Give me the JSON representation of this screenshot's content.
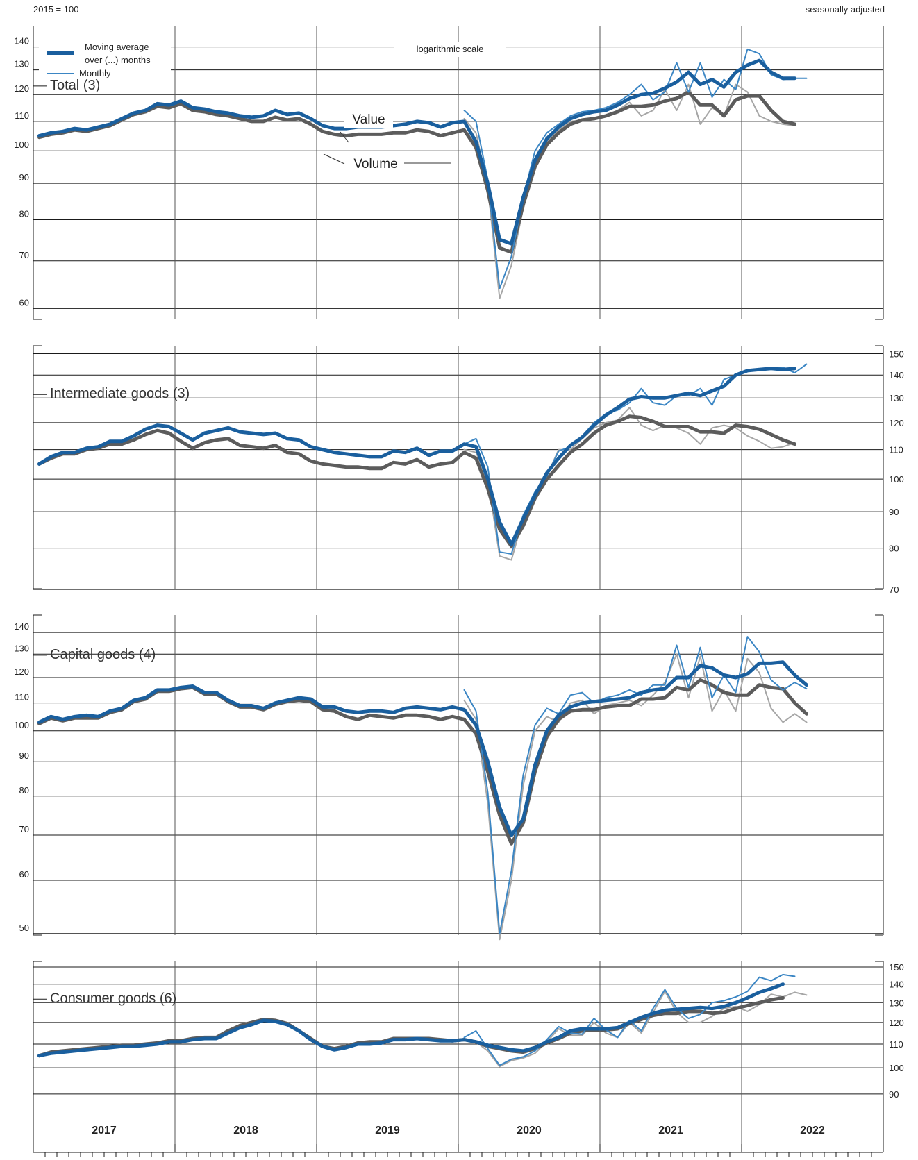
{
  "header": {
    "index_base": "2015 = 100",
    "adjustment_note": "seasonally adjusted"
  },
  "legend": {
    "moving_average_label_line1": "Moving average",
    "moving_average_label_line2": "over (...) months",
    "monthly_label": "Monthly",
    "value_label": "Value",
    "volume_label": "Volume",
    "scale_note": "logarithmic scale"
  },
  "colors": {
    "value_ma": "#1a5f9e",
    "value_monthly": "#3b86c4",
    "volume_ma": "#5c5c5c",
    "volume_monthly": "#a6a6a6",
    "grid": "#1a1a1a"
  },
  "x_axis": {
    "years": [
      "2017",
      "2018",
      "2019",
      "2020",
      "2021",
      "2022"
    ],
    "start": "2017-01",
    "months": 72
  },
  "chart_data": [
    {
      "type": "line",
      "title": "Total (3)",
      "scale": "log",
      "ylim": [
        56,
        150
      ],
      "yticks": [
        60,
        70,
        80,
        90,
        100,
        110,
        120,
        130,
        140
      ],
      "axis_side": "left",
      "ma_start": 0,
      "monthly_start": 36,
      "series": [
        {
          "name": "Value",
          "kind": "moving average",
          "start": "2017-01",
          "values": [
            105,
            106,
            106.5,
            107.5,
            107,
            108,
            109,
            111,
            113,
            114,
            116.5,
            116,
            117.5,
            115,
            114.5,
            113.5,
            113,
            112,
            111.5,
            112,
            114,
            112.5,
            113,
            111,
            108.5,
            107.5,
            107.5,
            108,
            108,
            108,
            108.5,
            109,
            110,
            109.5,
            108,
            109.5,
            110,
            103,
            90,
            75,
            74,
            86,
            97,
            104,
            108,
            111,
            112.5,
            113.5,
            114,
            116,
            118.5,
            120,
            120.5,
            122.5,
            125,
            129,
            124,
            126,
            123,
            129,
            132,
            134,
            129,
            126.5,
            126.5
          ]
        },
        {
          "name": "Value",
          "kind": "monthly",
          "start": "2020-01",
          "values": [
            114,
            110,
            91,
            64,
            71,
            86,
            100,
            106,
            109,
            112,
            113.5,
            114,
            115,
            117,
            120,
            124,
            118,
            121,
            133,
            121,
            133,
            119,
            126,
            122,
            139,
            137,
            128,
            126,
            126.5,
            126.5
          ]
        },
        {
          "name": "Volume",
          "kind": "moving average",
          "start": "2017-01",
          "values": [
            104.5,
            105.5,
            106,
            107,
            106.5,
            107.5,
            108.5,
            110.5,
            112.5,
            113.5,
            115.5,
            115,
            116.5,
            114,
            113.5,
            112.5,
            112,
            111,
            110,
            110,
            111.5,
            110.5,
            111,
            109,
            106.5,
            105.5,
            105,
            105.5,
            105.5,
            105.5,
            106,
            106,
            107,
            106.5,
            105,
            106,
            107,
            101,
            88,
            73,
            72,
            84,
            95,
            102,
            106,
            109,
            110.5,
            111,
            112,
            113.5,
            115.5,
            115.5,
            116,
            117.5,
            118.5,
            121,
            116,
            116,
            112,
            118,
            119.5,
            119.5,
            114,
            110,
            109
          ]
        },
        {
          "name": "Volume",
          "kind": "monthly",
          "start": "2020-01",
          "values": [
            111,
            106,
            89,
            62,
            69,
            83,
            97,
            103,
            107,
            110,
            110.5,
            111,
            112,
            114,
            117,
            112,
            114,
            122,
            114,
            124,
            109,
            115,
            112,
            124,
            121,
            112,
            110,
            109,
            108.5
          ]
        }
      ]
    },
    {
      "type": "line",
      "title": "Intermediate goods (3)",
      "scale": "log",
      "ylim": [
        68,
        156
      ],
      "yticks": [
        70,
        80,
        90,
        100,
        110,
        120,
        130,
        140,
        150
      ],
      "axis_side": "right",
      "ma_start": 0,
      "monthly_start": 36,
      "series": [
        {
          "name": "Value",
          "kind": "moving average",
          "start": "2017-01",
          "values": [
            105,
            107.5,
            109,
            109,
            110.5,
            111,
            113,
            113,
            115,
            117.5,
            119,
            118.5,
            116,
            113.5,
            116,
            117,
            118,
            116.5,
            116,
            115.5,
            116,
            114,
            113.5,
            111,
            110,
            109,
            108.5,
            108,
            107.5,
            107.5,
            109.5,
            109,
            110.5,
            108,
            109.5,
            109.5,
            112,
            111,
            100,
            87,
            81,
            88,
            95,
            102,
            107,
            111.5,
            114.5,
            119,
            123,
            126,
            129.5,
            130.5,
            130,
            130,
            131,
            132,
            131,
            133,
            135,
            140,
            142,
            142.5,
            143,
            142.5,
            143
          ]
        },
        {
          "name": "Value",
          "kind": "monthly",
          "start": "2020-01",
          "values": [
            112,
            114,
            104,
            79,
            78.5,
            89,
            96,
            101,
            109.5,
            111,
            115,
            120,
            123.5,
            125,
            128,
            134,
            128,
            127,
            131,
            131,
            134,
            127,
            138,
            140,
            142,
            142,
            143,
            143.5,
            141,
            145
          ]
        },
        {
          "name": "Volume",
          "kind": "moving average",
          "start": "2017-01",
          "values": [
            105,
            107,
            108.5,
            108.5,
            110,
            110.5,
            112,
            112,
            113.5,
            115.5,
            117,
            116,
            113,
            110.5,
            112.5,
            113.5,
            114,
            111.5,
            111,
            110.5,
            111.5,
            109,
            108.5,
            106,
            105,
            104.5,
            104,
            104,
            103.5,
            103.5,
            105.5,
            105,
            106.5,
            104,
            105,
            105.5,
            109,
            107,
            97,
            85,
            80.5,
            86,
            94,
            100,
            104.5,
            109,
            112,
            116,
            119,
            120.5,
            122.5,
            122,
            120.5,
            118.5,
            118.5,
            118.5,
            116.5,
            116.5,
            116,
            119,
            118.5,
            117.5,
            115.5,
            113.5,
            112
          ]
        },
        {
          "name": "Volume",
          "kind": "monthly",
          "start": "2020-01",
          "values": [
            110,
            109,
            100,
            78,
            77,
            88,
            95,
            101,
            110,
            110,
            114,
            118,
            120,
            121,
            126,
            119,
            117,
            119,
            118,
            116,
            112,
            118,
            119,
            118,
            115,
            113,
            110.5,
            111,
            112.5
          ]
        }
      ]
    },
    {
      "type": "line",
      "title": "Capital goods (4)",
      "scale": "log",
      "ylim": [
        48,
        150
      ],
      "yticks": [
        50,
        60,
        70,
        80,
        90,
        100,
        110,
        120,
        130,
        140
      ],
      "axis_side": "left",
      "ma_start": 0,
      "monthly_start": 36,
      "series": [
        {
          "name": "Value",
          "kind": "moving average",
          "start": "2017-01",
          "values": [
            103,
            105,
            104,
            105,
            105.5,
            105,
            107,
            108,
            111,
            112,
            115,
            115,
            116,
            116.5,
            114,
            114,
            111,
            109,
            109,
            108,
            110,
            111,
            112,
            111.5,
            108.5,
            108.5,
            107,
            106.5,
            107,
            107,
            106.5,
            108,
            108.5,
            108,
            107.5,
            108.5,
            107.5,
            102,
            90,
            77,
            70,
            74,
            89,
            100,
            105.5,
            108.5,
            110,
            110.5,
            111,
            111.5,
            112,
            114,
            115,
            115.5,
            120,
            120,
            125,
            124,
            121,
            120,
            121.5,
            126,
            126,
            126.5,
            121,
            117
          ]
        },
        {
          "name": "Value",
          "kind": "monthly",
          "start": "2020-01",
          "values": [
            115,
            107,
            81,
            50,
            62,
            86,
            102,
            108,
            106,
            113,
            114,
            110,
            112,
            113,
            115,
            113,
            117,
            117,
            134,
            116,
            133,
            112,
            121,
            114,
            138,
            131,
            119,
            115,
            118,
            115.5
          ]
        },
        {
          "name": "Volume",
          "kind": "moving average",
          "start": "2017-01",
          "values": [
            102.5,
            104.5,
            103.5,
            104.5,
            104.5,
            104.5,
            106.5,
            107.5,
            110.5,
            111.5,
            114.5,
            114.5,
            115.5,
            116,
            113.5,
            113.5,
            110.5,
            108.5,
            108.5,
            107.5,
            109.5,
            110.5,
            111,
            110.5,
            107.5,
            107,
            105,
            104,
            105.5,
            105,
            104.5,
            105.5,
            105.5,
            105,
            104,
            105,
            104,
            99,
            87,
            75,
            68,
            73,
            87,
            98,
            104,
            107,
            107.5,
            107.5,
            108.5,
            109,
            109,
            111.5,
            111.5,
            112,
            116,
            115,
            119,
            117,
            114,
            113,
            113,
            117,
            116,
            115.5,
            110,
            106
          ]
        },
        {
          "name": "Volume",
          "kind": "monthly",
          "start": "2020-01",
          "values": [
            111,
            104,
            78,
            49,
            60,
            83,
            100,
            105,
            103,
            110,
            111,
            106,
            109,
            110,
            111,
            109,
            113,
            118,
            130,
            112,
            129,
            107,
            115,
            107,
            128,
            122,
            108,
            103,
            106,
            103
          ]
        }
      ]
    },
    {
      "type": "line",
      "title": "Consumer goods (6)",
      "scale": "log",
      "ylim": [
        87,
        156
      ],
      "yticks": [
        90,
        100,
        110,
        120,
        130,
        140,
        150
      ],
      "axis_side": "right",
      "ma_start": 0,
      "monthly_start": 36,
      "series": [
        {
          "name": "Value",
          "kind": "moving average",
          "start": "2017-01",
          "values": [
            105,
            106,
            106.5,
            107,
            107.5,
            108,
            108.5,
            109,
            109,
            109.5,
            110,
            111,
            111,
            112,
            112.5,
            112.5,
            115,
            117.5,
            119,
            121,
            120.5,
            119,
            116,
            112,
            109,
            107.5,
            108.5,
            110,
            110,
            110.5,
            112,
            112,
            112.5,
            112,
            111.5,
            111.5,
            112,
            111,
            109.5,
            108.5,
            107.5,
            107,
            108.5,
            111,
            113,
            116,
            117,
            117,
            117,
            117.5,
            120,
            122.5,
            124.5,
            126,
            126.5,
            127,
            127.5,
            127,
            128,
            130,
            132.5,
            135.5,
            137.5,
            140
          ]
        },
        {
          "name": "Value",
          "kind": "monthly",
          "start": "2020-01",
          "values": [
            113,
            116,
            108,
            101,
            103.5,
            104.5,
            107,
            112,
            118,
            115,
            114.5,
            122,
            116.5,
            113,
            121,
            116,
            127,
            137,
            127,
            122,
            124,
            130,
            131,
            133,
            136,
            144,
            142,
            145.5,
            144.5
          ]
        },
        {
          "name": "Volume",
          "kind": "moving average",
          "start": "2017-01",
          "values": [
            105,
            106.5,
            107,
            107.5,
            108,
            108.5,
            109,
            109.5,
            109.5,
            110,
            110.5,
            111.5,
            111.5,
            112.5,
            113,
            113,
            116,
            118.5,
            120,
            121.5,
            121,
            119.5,
            116,
            112.5,
            109,
            108,
            109,
            110.5,
            111,
            111,
            112.5,
            112.5,
            112.5,
            112.5,
            112,
            111.5,
            112,
            111,
            109,
            108,
            107,
            106.5,
            108,
            110.5,
            112.5,
            115,
            116,
            116.5,
            116.5,
            117,
            119.5,
            121.5,
            123.5,
            124.5,
            124.5,
            125.5,
            125.5,
            124.5,
            125,
            127,
            128.5,
            130,
            131.5,
            132.5
          ]
        },
        {
          "name": "Volume",
          "kind": "monthly",
          "start": "2020-01",
          "values": [
            112,
            111,
            107,
            100.5,
            103,
            104,
            106,
            111,
            117,
            114,
            114,
            120,
            115,
            113,
            120,
            115,
            125,
            136,
            125,
            120,
            120,
            123,
            127,
            128,
            125.5,
            129,
            134.5,
            133,
            135.5,
            134
          ]
        }
      ]
    }
  ]
}
